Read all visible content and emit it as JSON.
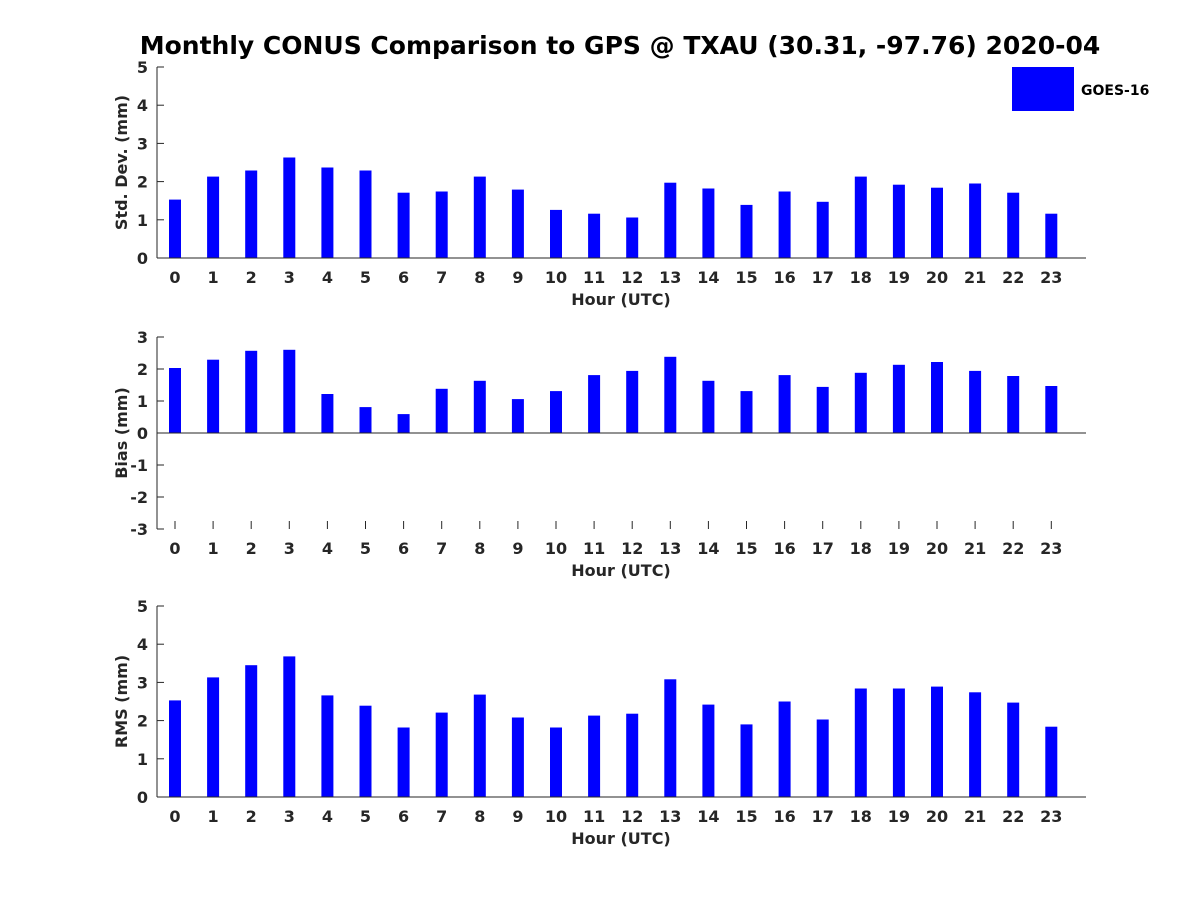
{
  "title": "Monthly CONUS Comparison to GPS @ TXAU (30.31, -97.76) 2020-04",
  "legend": {
    "label": "GOES-16",
    "color": "#0000ff"
  },
  "chart_data": [
    {
      "type": "bar",
      "ylabel": "Std. Dev. (mm)",
      "xlabel": "Hour (UTC)",
      "ylim": [
        0,
        5
      ],
      "yticks": [
        0,
        1,
        2,
        3,
        4,
        5
      ],
      "categories": [
        "0",
        "1",
        "2",
        "3",
        "4",
        "5",
        "6",
        "7",
        "8",
        "9",
        "10",
        "11",
        "12",
        "13",
        "14",
        "15",
        "16",
        "17",
        "18",
        "19",
        "20",
        "21",
        "22",
        "23"
      ],
      "series": [
        {
          "name": "GOES-16",
          "color": "#0000ff",
          "values": [
            1.53,
            2.13,
            2.29,
            2.63,
            2.37,
            2.29,
            1.71,
            1.74,
            2.13,
            1.79,
            1.26,
            1.16,
            1.06,
            1.97,
            1.82,
            1.39,
            1.74,
            1.47,
            2.13,
            1.92,
            1.84,
            1.95,
            1.71,
            1.16
          ]
        }
      ]
    },
    {
      "type": "bar",
      "ylabel": "Bias (mm)",
      "xlabel": "Hour (UTC)",
      "ylim": [
        -3,
        3
      ],
      "yticks": [
        -3,
        -2,
        -1,
        0,
        1,
        2,
        3
      ],
      "categories": [
        "0",
        "1",
        "2",
        "3",
        "4",
        "5",
        "6",
        "7",
        "8",
        "9",
        "10",
        "11",
        "12",
        "13",
        "14",
        "15",
        "16",
        "17",
        "18",
        "19",
        "20",
        "21",
        "22",
        "23"
      ],
      "series": [
        {
          "name": "GOES-16",
          "color": "#0000ff",
          "values": [
            2.03,
            2.29,
            2.57,
            2.6,
            1.22,
            0.81,
            0.59,
            1.38,
            1.63,
            1.06,
            1.31,
            1.81,
            1.94,
            2.38,
            1.63,
            1.31,
            1.81,
            1.44,
            1.88,
            2.13,
            2.22,
            1.94,
            1.78,
            1.47
          ]
        }
      ]
    },
    {
      "type": "bar",
      "ylabel": "RMS (mm)",
      "xlabel": "Hour (UTC)",
      "ylim": [
        0,
        5
      ],
      "yticks": [
        0,
        1,
        2,
        3,
        4,
        5
      ],
      "categories": [
        "0",
        "1",
        "2",
        "3",
        "4",
        "5",
        "6",
        "7",
        "8",
        "9",
        "10",
        "11",
        "12",
        "13",
        "14",
        "15",
        "16",
        "17",
        "18",
        "19",
        "20",
        "21",
        "22",
        "23"
      ],
      "series": [
        {
          "name": "GOES-16",
          "color": "#0000ff",
          "values": [
            2.53,
            3.13,
            3.45,
            3.68,
            2.66,
            2.39,
            1.82,
            2.21,
            2.68,
            2.08,
            1.82,
            2.13,
            2.18,
            3.08,
            2.42,
            1.9,
            2.5,
            2.03,
            2.84,
            2.84,
            2.89,
            2.74,
            2.47,
            1.84
          ]
        }
      ]
    }
  ]
}
